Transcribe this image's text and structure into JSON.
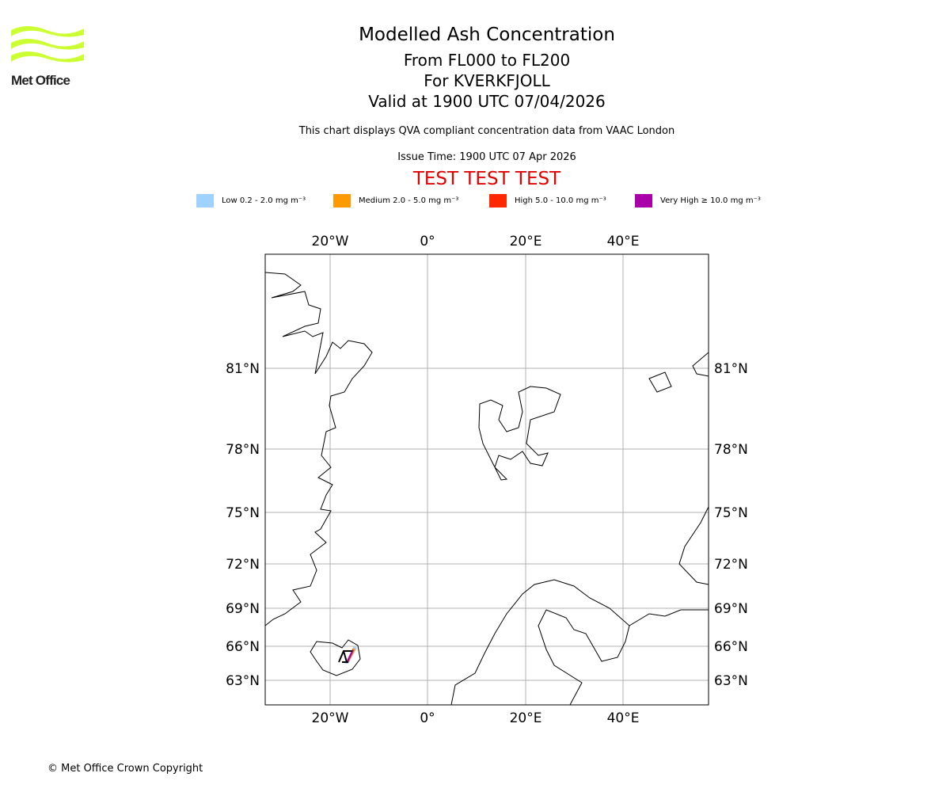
{
  "logo": {
    "text": "Met Office",
    "color": "#ccff33"
  },
  "title": "Modelled Ash Concentration",
  "levels": "From FL000 to FL200",
  "volcano": "For KVERKFJOLL",
  "valid": "Valid at 1900 UTC 07/04/2026",
  "subtitle": "This chart displays QVA compliant concentration data from VAAC London",
  "issue_time": "Issue Time: 1900 UTC 07 Apr 2026",
  "test_banner": "TEST TEST TEST",
  "legend": [
    {
      "label": "Low 0.2 - 2.0 mg m⁻³",
      "color": "#a0d2ff"
    },
    {
      "label": "Medium 2.0 - 5.0 mg m⁻³",
      "color": "#ff9900"
    },
    {
      "label": "High 5.0 - 10.0 mg m⁻³",
      "color": "#ff2800"
    },
    {
      "label": "Very High ≥ 10.0 mg m⁻³",
      "color": "#aa00aa"
    }
  ],
  "map": {
    "lon_labels": [
      "20°W",
      "0°",
      "20°E",
      "40°E"
    ],
    "lat_labels": [
      "81°N",
      "78°N",
      "75°N",
      "72°N",
      "69°N",
      "66°N",
      "63°N"
    ]
  },
  "copyright": "© Met Office Crown Copyright"
}
